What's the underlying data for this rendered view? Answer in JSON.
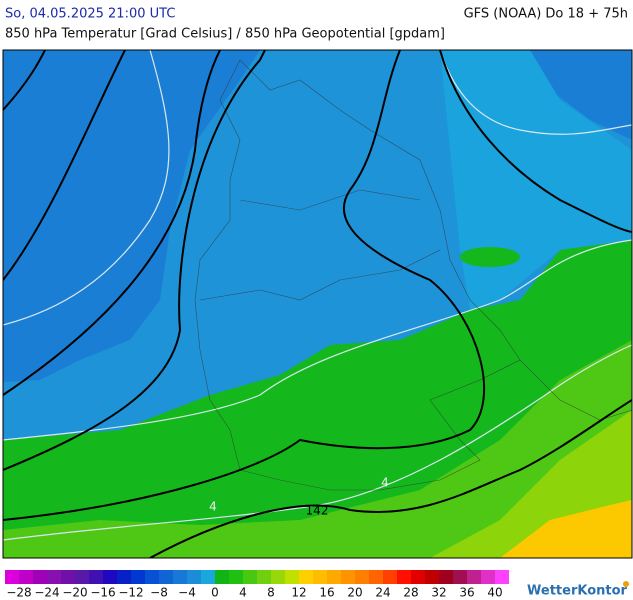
{
  "header": {
    "datetime": "So, 04.05.2025 21:00 UTC",
    "model": "GFS (NOAA) Do 18 + 75h",
    "subtitle": "850 hPa Temperatur [Grad Celsius] / 850 hPa Geopotential [gpdam]"
  },
  "map": {
    "contour_labels": [
      "142",
      "4",
      "4"
    ]
  },
  "legend": {
    "labels": [
      "−28",
      "−24",
      "−20",
      "−16",
      "−12",
      "−8",
      "−4",
      "0",
      "4",
      "8",
      "12",
      "16",
      "20",
      "24",
      "28",
      "32",
      "36",
      "40"
    ],
    "colors": [
      "#dc00dc",
      "#c000c8",
      "#a000b8",
      "#8810b0",
      "#7010a8",
      "#5818a8",
      "#4010b0",
      "#2008c0",
      "#0820c8",
      "#0038d0",
      "#0850d4",
      "#1064d4",
      "#1878d8",
      "#1a8cd8",
      "#1aa8dc",
      "#10b414",
      "#20c010",
      "#48c810",
      "#70d010",
      "#98d80a",
      "#c0e000",
      "#ffd000",
      "#ffbc00",
      "#ffa800",
      "#ff9400",
      "#ff8000",
      "#ff6400",
      "#ff4000",
      "#ff1000",
      "#e00000",
      "#c00000",
      "#a00020",
      "#a01050",
      "#c02090",
      "#e030c8",
      "#ff40ff"
    ]
  },
  "brand": "WetterKontor"
}
